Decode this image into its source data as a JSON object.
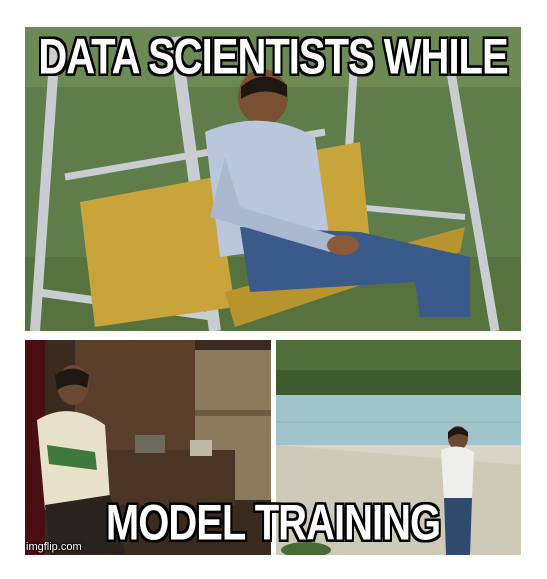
{
  "meme": {
    "top_text": "DATA SCIENTISTS WHILE",
    "bottom_text": "MODEL TRAINING",
    "watermark": "imgflip.com"
  },
  "colors": {
    "caption_fill": "#ffffff",
    "caption_stroke": "#000000",
    "grass": "#5f7d4a",
    "swing_frame": "#c9ccd0",
    "cushion": "#c9a43a",
    "shirt": "#b9c6dc",
    "jeans": "#3a5a8c",
    "pool_wall": "#9fc4cc",
    "room_dark": "#3b2a1e"
  }
}
